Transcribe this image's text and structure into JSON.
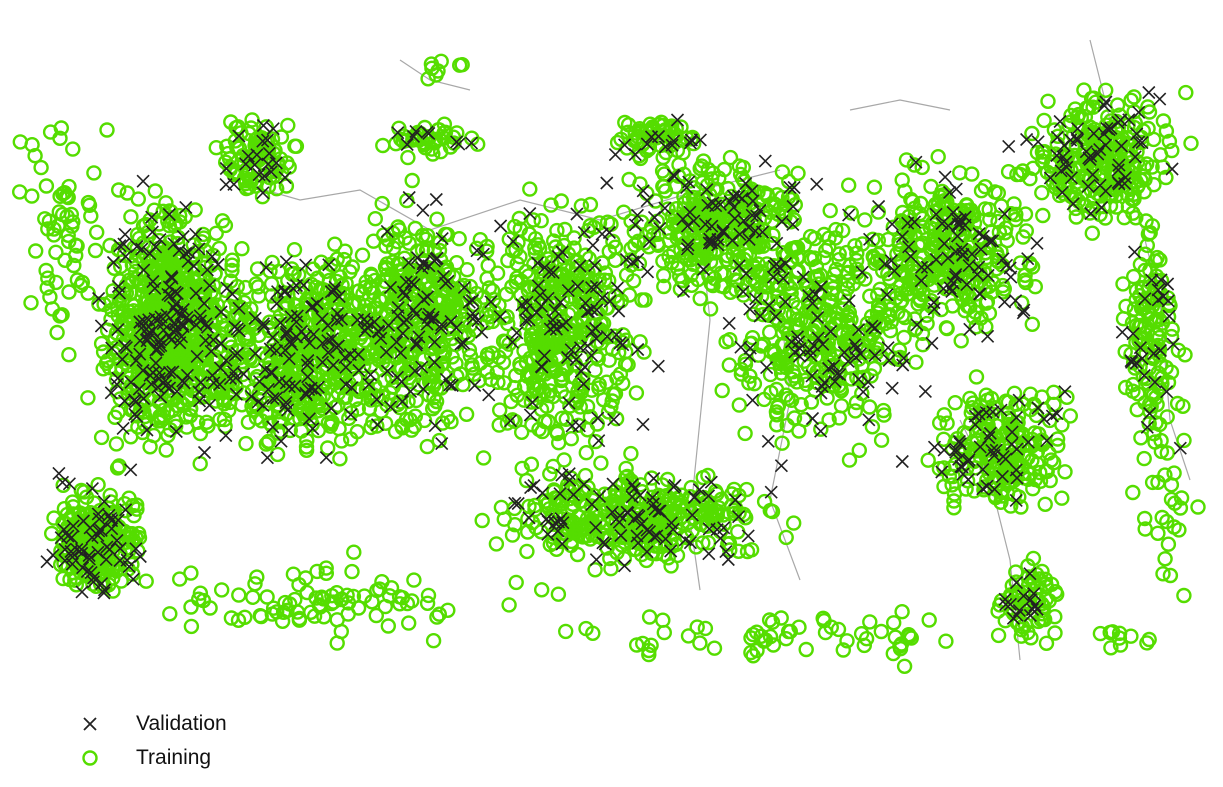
{
  "colors": {
    "training": "#55dd00",
    "validation": "#222222",
    "border": "#a8a8a8"
  },
  "legend": {
    "validation_label": "Validation",
    "training_label": "Training",
    "validation_icon": "cross-marker-icon",
    "training_icon": "circle-marker-icon"
  }
}
